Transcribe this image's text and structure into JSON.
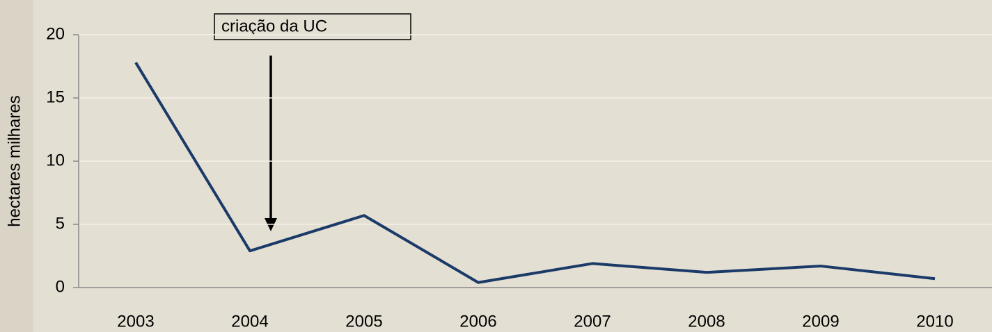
{
  "chart_data": {
    "type": "line",
    "y_label": "hectares milhares",
    "annotation": "criação da UC",
    "categories": [
      "2003",
      "2004",
      "2005",
      "2006",
      "2007",
      "2008",
      "2009",
      "2010"
    ],
    "series": [
      {
        "color": "#1a3a68",
        "values": [
          17.8,
          2.9,
          5.7,
          0.4,
          1.9,
          1.2,
          1.7,
          0.7
        ]
      }
    ],
    "ylim": [
      0,
      20
    ],
    "yticks": [
      0,
      5,
      10,
      15,
      20
    ],
    "grid": true
  }
}
